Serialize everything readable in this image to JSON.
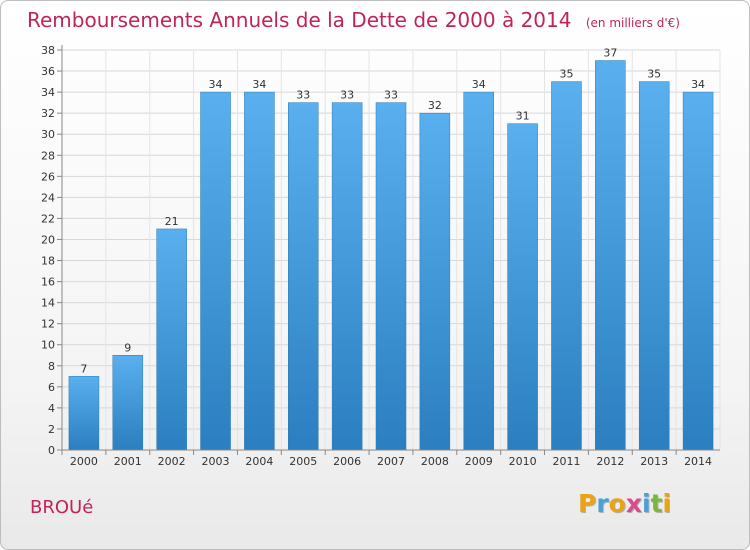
{
  "title": "Remboursements Annuels de la Dette de 2000 à 2014",
  "unit_note": "(en milliers d'€)",
  "town": "BROUé",
  "logo": {
    "letters": [
      "P",
      "r",
      "o",
      "x",
      "i",
      "t",
      "i"
    ],
    "colors": [
      "#e8a317",
      "#4aa0d8",
      "#e8a317",
      "#d94c8a",
      "#4aa0d8",
      "#7bb83a",
      "#e8a317"
    ]
  },
  "colors": {
    "title": "#c0245a",
    "bar_light": "#5ab0ee",
    "bar_dark": "#2b7fc0",
    "grid": "#d8d8d8"
  },
  "chart_data": {
    "type": "bar",
    "title": "Remboursements Annuels de la Dette de 2000 à 2014",
    "xlabel": "",
    "ylabel": "en milliers d'€",
    "categories": [
      "2000",
      "2001",
      "2002",
      "2003",
      "2004",
      "2005",
      "2006",
      "2007",
      "2008",
      "2009",
      "2010",
      "2011",
      "2012",
      "2013",
      "2014"
    ],
    "values": [
      7,
      9,
      21,
      34,
      34,
      33,
      33,
      33,
      32,
      34,
      31,
      35,
      37,
      35,
      34
    ],
    "ylim": [
      0,
      38
    ],
    "yticks": [
      0,
      2,
      4,
      6,
      8,
      10,
      12,
      14,
      16,
      18,
      20,
      22,
      24,
      26,
      28,
      30,
      32,
      34,
      36,
      38
    ],
    "grid": true
  }
}
